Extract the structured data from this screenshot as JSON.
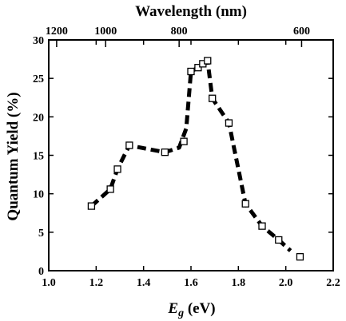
{
  "chart_data": {
    "type": "scatter",
    "title": "",
    "xlabel": "E",
    "xlabel_sub": "g",
    "xlabel_unit": " (eV)",
    "ylabel": "Quantum Yield (%)",
    "top_xlabel": "Wavelength (nm)",
    "xlim": [
      1.0,
      2.2
    ],
    "ylim": [
      0,
      30
    ],
    "grid": false,
    "x_ticks": [
      "1.0",
      "1.2",
      "1.4",
      "1.6",
      "1.8",
      "2.0",
      "2.2"
    ],
    "x_tick_values": [
      1.0,
      1.2,
      1.4,
      1.6,
      1.8,
      2.0,
      2.2
    ],
    "y_ticks": [
      "0",
      "5",
      "10",
      "15",
      "20",
      "25",
      "30"
    ],
    "y_tick_values": [
      0,
      5,
      10,
      15,
      20,
      25,
      30
    ],
    "top_ticks": [
      "1200",
      "1000",
      "800",
      "600"
    ],
    "top_tick_values": [
      1200,
      1000,
      800,
      600
    ],
    "top_tick_conversion": "1240/nm",
    "series": [
      {
        "marker": "open-square",
        "color": "#000000",
        "x": [
          1.18,
          1.26,
          1.29,
          1.34,
          1.49,
          1.57,
          1.6,
          1.63,
          1.65,
          1.67,
          1.69,
          1.76,
          1.83,
          1.9,
          1.97,
          2.06
        ],
        "y": [
          8.4,
          10.6,
          13.2,
          16.3,
          15.4,
          16.8,
          25.9,
          26.4,
          26.9,
          27.3,
          22.4,
          19.2,
          8.7,
          5.8,
          4.0,
          1.8
        ]
      }
    ],
    "fit_curve": {
      "style": "dashed",
      "color": "#000000",
      "x": [
        1.18,
        1.26,
        1.29,
        1.34,
        1.42,
        1.49,
        1.55,
        1.58,
        1.6,
        1.63,
        1.65,
        1.67,
        1.69,
        1.76,
        1.83,
        1.9,
        1.97,
        2.02
      ],
      "y": [
        8.4,
        10.6,
        13.2,
        16.3,
        15.8,
        15.4,
        16.0,
        18.5,
        25.9,
        26.4,
        26.9,
        27.3,
        22.4,
        19.2,
        8.7,
        5.8,
        4.0,
        2.6
      ]
    }
  }
}
